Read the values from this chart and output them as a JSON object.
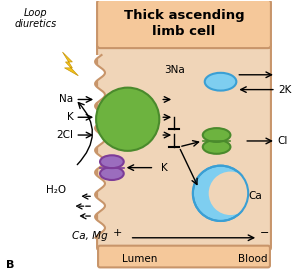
{
  "bg_color": "#ffffff",
  "cell_color": "#f0d5b8",
  "cell_border_color": "#c8956a",
  "header_color": "#f5c89a",
  "title": "Thick ascending\nlimb cell",
  "title_fontsize": 9.5,
  "loop_diuretics_text": "Loop\ndiuretics",
  "lumen_text": "Lumen",
  "blood_text": "Blood",
  "lightning_color": "#f5c518",
  "green_color": "#6db33f",
  "green_edge": "#4a8a2c",
  "purple_color": "#9b6dbe",
  "purple_edge": "#7d3c98",
  "blue_color": "#7ecef0",
  "blue_edge": "#3a9fd4"
}
